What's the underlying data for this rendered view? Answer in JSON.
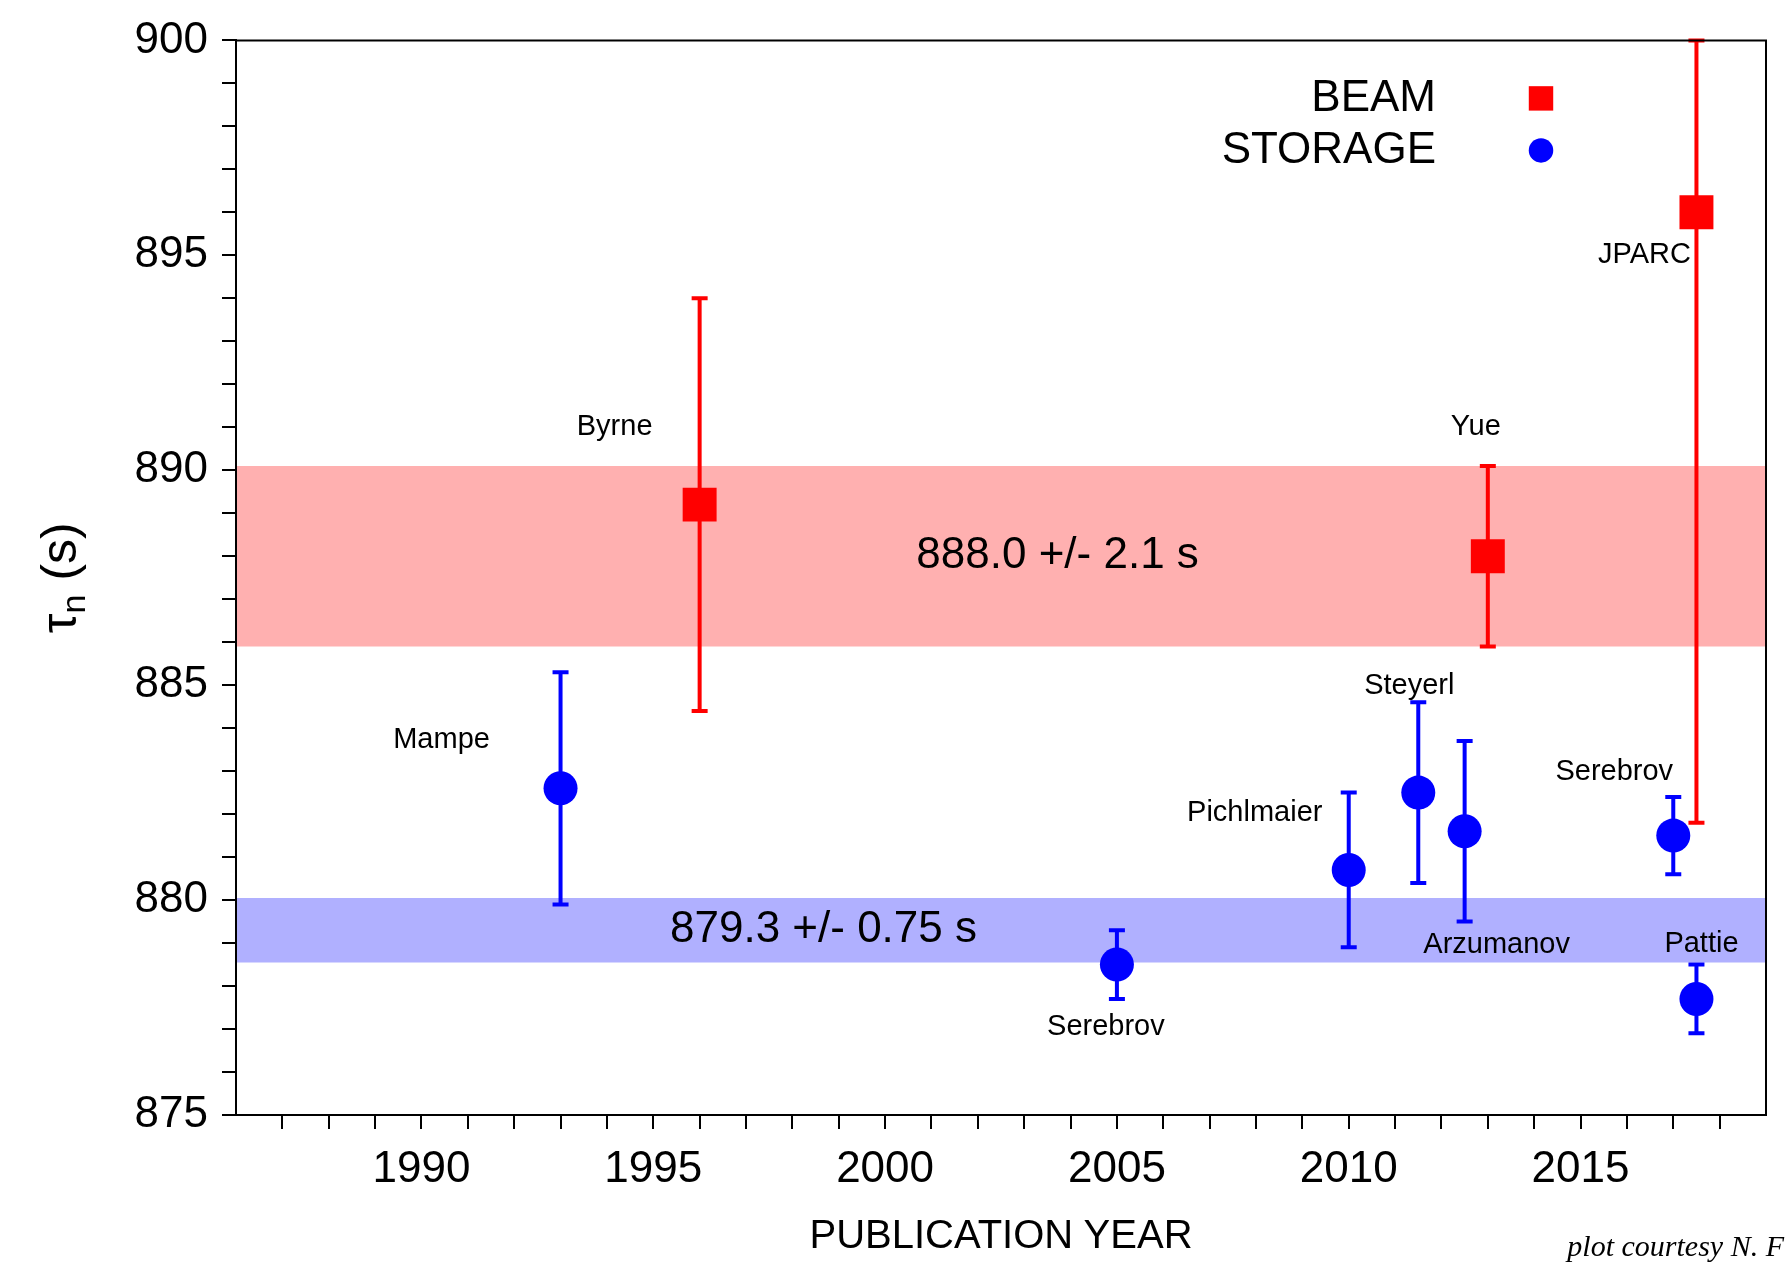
{
  "chart_data": {
    "type": "scatter",
    "xlabel": "PUBLICATION YEAR",
    "ylabel": "τ$_{n}$ (s)",
    "xlim": [
      1986,
      2019
    ],
    "xticks": [
      {
        "value": 1987,
        "label": null
      },
      {
        "value": 1988,
        "label": null
      },
      {
        "value": 1989,
        "label": null
      },
      1990,
      {
        "value": 1991,
        "label": null
      },
      {
        "value": 1992,
        "label": null
      },
      {
        "value": 1993,
        "label": null
      },
      {
        "value": 1994,
        "label": null
      },
      1995,
      {
        "value": 1996,
        "label": null
      },
      {
        "value": 1997,
        "label": null
      },
      {
        "value": 1998,
        "label": null
      },
      {
        "value": 1999,
        "label": null
      },
      2000,
      {
        "value": 2001,
        "label": null
      },
      {
        "value": 2002,
        "label": null
      },
      {
        "value": 2003,
        "label": null
      },
      {
        "value": 2004,
        "label": null
      },
      2005,
      {
        "value": 2006,
        "label": null
      },
      {
        "value": 2007,
        "label": null
      },
      {
        "value": 2008,
        "label": null
      },
      {
        "value": 2009,
        "label": null
      },
      2010,
      {
        "value": 2011,
        "label": null
      },
      {
        "value": 2012,
        "label": null
      },
      {
        "value": 2013,
        "label": null
      },
      {
        "value": 2014,
        "label": null
      },
      2015,
      {
        "value": 2016,
        "label": null
      },
      {
        "value": 2017,
        "label": null
      },
      {
        "value": 2018,
        "label": null
      }
    ],
    "ylim": [
      875,
      900
    ],
    "yticks": [
      875,
      {
        "value": 876,
        "label": null
      },
      {
        "value": 877,
        "label": null
      },
      {
        "value": 878,
        "label": null
      },
      {
        "value": 879,
        "label": null
      },
      880,
      {
        "value": 881,
        "label": null
      },
      {
        "value": 882,
        "label": null
      },
      {
        "value": 883,
        "label": null
      },
      {
        "value": 884,
        "label": null
      },
      885,
      {
        "value": 886,
        "label": null
      },
      {
        "value": 887,
        "label": null
      },
      {
        "value": 888,
        "label": null
      },
      {
        "value": 889,
        "label": null
      },
      890,
      {
        "value": 891,
        "label": null
      },
      {
        "value": 892,
        "label": null
      },
      {
        "value": 893,
        "label": null
      },
      {
        "value": 894,
        "label": null
      },
      895,
      {
        "value": 896,
        "label": null
      },
      {
        "value": 897,
        "label": null
      },
      {
        "value": 898,
        "label": null
      },
      {
        "value": 899,
        "label": null
      },
      900
    ],
    "grid": false,
    "legend": "top right",
    "series": [
      {
        "name": "BEAM",
        "color": "#ff0000",
        "marker": "square",
        "x": [
          1996,
          2013,
          2017.5
        ],
        "values": [
          889.2,
          888.0,
          896.0
        ],
        "errors": [
          4.8,
          2.1,
          [
            881.8,
            900
          ]
        ]
      },
      {
        "name": "STORAGE",
        "color": "#0000ff",
        "marker": "circle",
        "x": [
          1993,
          2005,
          2010,
          2011.5,
          2012.5,
          2017,
          2017.5
        ],
        "values": [
          882.6,
          878.5,
          880.7,
          882.5,
          881.6,
          881.5,
          877.7
        ],
        "errors": [
          2.7,
          0.8,
          1.8,
          2.1,
          2.1,
          0.9,
          0.8
        ]
      }
    ],
    "bands": [
      {
        "axis": "y",
        "from": 885.9,
        "to": 890.1,
        "label": "888.0 +/- 2.1 s",
        "color": "#ffb0b0"
      },
      {
        "axis": "y",
        "from": 878.55,
        "to": 880.05,
        "label": "879.3 +/- 0.75 s",
        "color": "#b0b0ff"
      }
    ],
    "annotations": [
      {
        "text": "Byrne",
        "x": 1996,
        "y": 889.2
      },
      {
        "text": "Mampe",
        "x": 1993,
        "y": 882.6
      },
      {
        "text": "Serebrov",
        "x": 2005,
        "y": 877.7
      },
      {
        "text": "Pichlmaier",
        "x": 2010,
        "y": 880.7
      },
      {
        "text": "Steyerl",
        "x": 2011.5,
        "y": 884.6
      },
      {
        "text": "Arzumanov",
        "x": 2012.5,
        "y": 879.5
      },
      {
        "text": "Yue",
        "x": 2013,
        "y": 890.1
      },
      {
        "text": "Serebrov",
        "x": 2017,
        "y": 881.5
      },
      {
        "text": "Pattie",
        "x": 2017.5,
        "y": 877.7
      },
      {
        "text": "JPARC",
        "x": 2017.5,
        "y": 896.0
      },
      "plot courtesy N. F"
    ]
  }
}
